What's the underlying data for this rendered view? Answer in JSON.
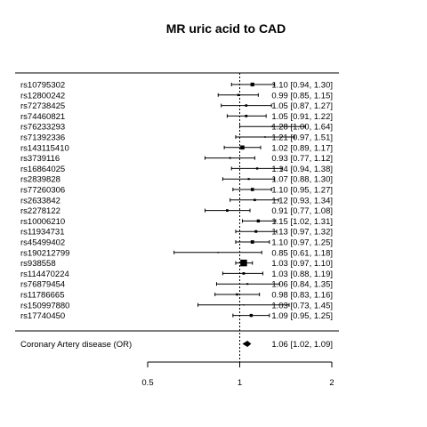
{
  "chart_data": {
    "type": "scatter",
    "subtype": "forest",
    "title": "MR uric acid to CAD",
    "xlabel": "",
    "ylabel": "",
    "x_scale": "log",
    "xlim": [
      0.5,
      2
    ],
    "x_ticks": [
      "0.5",
      "1",
      "2"
    ],
    "reference_line": 1,
    "grid": false,
    "legend": "none",
    "snps": [
      {
        "label": "rs10795302",
        "or": 1.1,
        "lo": 0.94,
        "hi": 1.3,
        "text": "1.10 [0.94, 1.30]",
        "weight": 4.2
      },
      {
        "label": "rs12800242",
        "or": 0.99,
        "lo": 0.85,
        "hi": 1.15,
        "text": "0.99 [0.85, 1.15]",
        "weight": 2.5
      },
      {
        "label": "rs72738425",
        "or": 1.05,
        "lo": 0.87,
        "hi": 1.27,
        "text": "1.05 [0.87, 1.27]",
        "weight": 2.6
      },
      {
        "label": "rs74460821",
        "or": 1.05,
        "lo": 0.91,
        "hi": 1.22,
        "text": "1.05 [0.91, 1.22]",
        "weight": 2.8
      },
      {
        "label": "rs76233293",
        "or": 1.28,
        "lo": 1.0,
        "hi": 1.64,
        "text": "1.28 [1.00, 1.64]",
        "weight": 1.8
      },
      {
        "label": "rs71392336",
        "or": 1.21,
        "lo": 0.97,
        "hi": 1.51,
        "text": "1.21 [0.97, 1.51]",
        "weight": 1.6
      },
      {
        "label": "rs143115410",
        "or": 1.02,
        "lo": 0.89,
        "hi": 1.17,
        "text": "1.02 [0.89, 1.17]",
        "weight": 4.6
      },
      {
        "label": "rs3739116",
        "or": 0.93,
        "lo": 0.77,
        "hi": 1.12,
        "text": "0.93 [0.77, 1.12]",
        "weight": 2.0
      },
      {
        "label": "rs16864025",
        "or": 1.14,
        "lo": 0.94,
        "hi": 1.38,
        "text": "1.14 [0.94, 1.38]",
        "weight": 2.4
      },
      {
        "label": "rs2839828",
        "or": 1.07,
        "lo": 0.88,
        "hi": 1.3,
        "text": "1.07 [0.88, 1.30]",
        "weight": 2.2
      },
      {
        "label": "rs77260306",
        "or": 1.1,
        "lo": 0.95,
        "hi": 1.27,
        "text": "1.10 [0.95, 1.27]",
        "weight": 3.6
      },
      {
        "label": "rs2633842",
        "or": 1.12,
        "lo": 0.93,
        "hi": 1.34,
        "text": "1.12 [0.93, 1.34]",
        "weight": 2.6
      },
      {
        "label": "rs2278122",
        "or": 0.91,
        "lo": 0.77,
        "hi": 1.08,
        "text": "0.91 [0.77, 1.08]",
        "weight": 2.8
      },
      {
        "label": "rs10006210",
        "or": 1.15,
        "lo": 1.02,
        "hi": 1.31,
        "text": "1.15 [1.02, 1.31]",
        "weight": 3.4
      },
      {
        "label": "rs11934731",
        "or": 1.13,
        "lo": 0.97,
        "hi": 1.32,
        "text": "1.13 [0.97, 1.32]",
        "weight": 3.0
      },
      {
        "label": "rs45499402",
        "or": 1.1,
        "lo": 0.97,
        "hi": 1.25,
        "text": "1.10 [0.97, 1.25]",
        "weight": 3.8
      },
      {
        "label": "rs190212799",
        "or": 0.85,
        "lo": 0.61,
        "hi": 1.18,
        "text": "0.85 [0.61, 1.18]",
        "weight": 1.4
      },
      {
        "label": "rs938558",
        "or": 1.03,
        "lo": 0.97,
        "hi": 1.1,
        "text": "1.03 [0.97, 1.10]",
        "weight": 7.5
      },
      {
        "label": "rs114470224",
        "or": 1.03,
        "lo": 0.88,
        "hi": 1.19,
        "text": "1.03 [0.88, 1.19]",
        "weight": 2.8
      },
      {
        "label": "rs76879454",
        "or": 1.06,
        "lo": 0.84,
        "hi": 1.35,
        "text": "1.06 [0.84, 1.35]",
        "weight": 2.0
      },
      {
        "label": "rs11786665",
        "or": 0.98,
        "lo": 0.83,
        "hi": 1.16,
        "text": "0.98 [0.83, 1.16]",
        "weight": 2.5
      },
      {
        "label": "rs150997880",
        "or": 1.03,
        "lo": 0.73,
        "hi": 1.45,
        "text": "1.03 [0.73, 1.45]",
        "weight": 1.3
      },
      {
        "label": "rs17740450",
        "or": 1.09,
        "lo": 0.95,
        "hi": 1.25,
        "text": "1.09 [0.95, 1.25]",
        "weight": 3.4
      }
    ],
    "summary": {
      "label": "Coronary Artery disease (OR)",
      "or": 1.06,
      "lo": 1.02,
      "hi": 1.09,
      "text": "1.06 [1.02, 1.09]"
    }
  }
}
